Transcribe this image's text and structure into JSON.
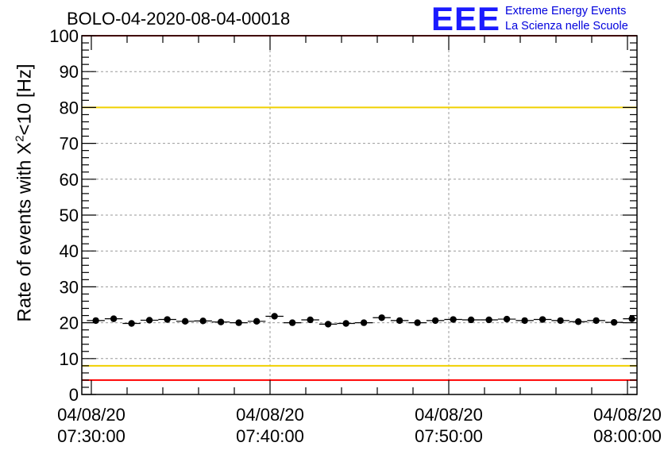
{
  "chart_data": {
    "type": "scatter",
    "title": "BOLO-04-2020-08-04-00018",
    "ylabel_prefix": "Rate of events with ",
    "ylabel_symbol": "X",
    "ylabel_sup": "2",
    "ylabel_suffix": "<10 [Hz]",
    "ylim": [
      0,
      100
    ],
    "y_ticks": [
      "0",
      "10",
      "20",
      "30",
      "40",
      "50",
      "60",
      "70",
      "80",
      "90",
      "100"
    ],
    "x_range_minutes": [
      0,
      30
    ],
    "x_ticks": [
      {
        "minute": 0,
        "date": "04/08/20",
        "time": "07:30:00"
      },
      {
        "minute": 10,
        "date": "04/08/20",
        "time": "07:40:00"
      },
      {
        "minute": 20,
        "date": "04/08/20",
        "time": "07:50:00"
      },
      {
        "minute": 30,
        "date": "04/08/20",
        "time": "08:00:00"
      }
    ],
    "grid": true,
    "reference_lines": [
      {
        "y": 80,
        "color": "#f0d000"
      },
      {
        "y": 8,
        "color": "#f0d000"
      },
      {
        "y": 100,
        "color": "#ff0000"
      },
      {
        "y": 4,
        "color": "#ff0000"
      }
    ],
    "series": [
      {
        "x": [
          0.25,
          1.25,
          2.25,
          3.25,
          4.25,
          5.25,
          6.25,
          7.25,
          8.25,
          9.25,
          10.25,
          11.25,
          12.25,
          13.25,
          14.25,
          15.25,
          16.25,
          17.25,
          18.25,
          19.25,
          20.25,
          21.25,
          22.25,
          23.25,
          24.25,
          25.25,
          26.25,
          27.25,
          28.25,
          29.25,
          30.25
        ],
        "y": [
          20.6,
          21.1,
          19.8,
          20.7,
          20.9,
          20.4,
          20.5,
          20.2,
          20.0,
          20.4,
          21.8,
          20.0,
          20.8,
          19.6,
          19.8,
          20.0,
          21.4,
          20.6,
          20.0,
          20.6,
          20.9,
          20.8,
          20.8,
          21.0,
          20.6,
          20.9,
          20.6,
          20.3,
          20.6,
          20.1,
          21.1
        ],
        "color": "#000000"
      }
    ]
  },
  "logo": {
    "mark": "EEE",
    "line1": "Extreme Energy Events",
    "line2": "La Scienza nelle Scuole",
    "color": "#0000dd"
  }
}
